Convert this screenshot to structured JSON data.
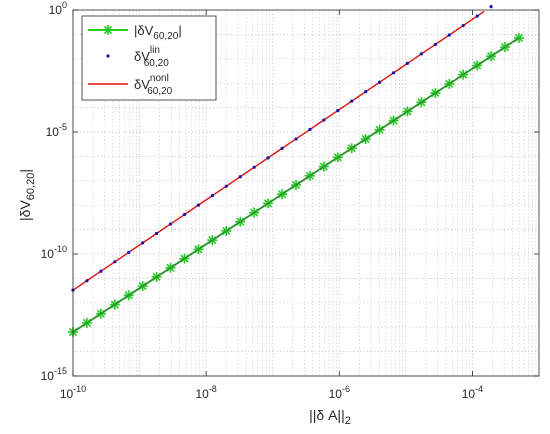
{
  "chart_data": {
    "type": "line",
    "xlabel": "||δ A||",
    "xlabel_sub": "2",
    "ylabel": "|δV",
    "ylabel_sub": "60,20",
    "ylabel_tail": "|",
    "x_scale": "log",
    "y_scale": "log",
    "xlim": [
      1e-10,
      0.001
    ],
    "ylim": [
      1e-15,
      1
    ],
    "grid": true,
    "legend_position": "top-left",
    "x_ticks": [
      {
        "value": 1e-10,
        "base": "10",
        "exp": "-10"
      },
      {
        "value": 1e-08,
        "base": "10",
        "exp": "-8"
      },
      {
        "value": 1e-06,
        "base": "10",
        "exp": "-6"
      },
      {
        "value": 0.0001,
        "base": "10",
        "exp": "-4"
      }
    ],
    "y_ticks": [
      {
        "value": 1,
        "base": "10",
        "exp": "0"
      },
      {
        "value": 1e-05,
        "base": "10",
        "exp": "-5"
      },
      {
        "value": 1e-10,
        "base": "10",
        "exp": "-10"
      },
      {
        "value": 1e-15,
        "base": "10",
        "exp": "-15"
      }
    ],
    "series": [
      {
        "key": "abs",
        "legend": {
          "pre": "|δV",
          "sub": "60,20",
          "sup": "",
          "post": "|"
        },
        "color": "#22cc22",
        "marker": "asterisk",
        "x_from": 1e-10,
        "x_to": 0.0005,
        "n": 33,
        "y_at_x_from": 6.3e-14,
        "slope": 1.8
      },
      {
        "key": "lin",
        "legend": {
          "pre": "δV",
          "sub": "60,20",
          "sup": "lin",
          "post": ""
        },
        "color": "#1111aa",
        "marker": "dot",
        "x_from": 1e-10,
        "x_to": 0.0005,
        "n": 33,
        "y_at_x_from": 3.3e-12,
        "slope": 1.85
      },
      {
        "key": "nonl",
        "legend": {
          "pre": "δV",
          "sub": "60,20",
          "sup": "nonl",
          "post": ""
        },
        "color": "#dd1111",
        "marker": "line",
        "x_from": 1e-10,
        "x_to": 0.00015,
        "n": 31,
        "y_at_x_from": 3.3e-12,
        "slope": 1.85
      }
    ]
  }
}
